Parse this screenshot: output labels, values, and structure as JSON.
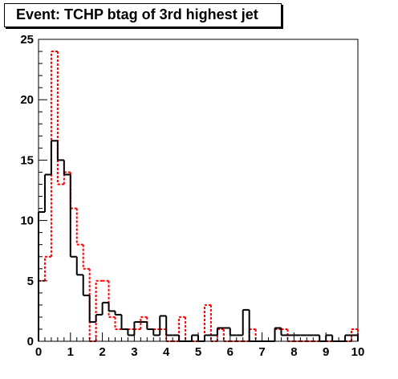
{
  "chart_data": {
    "type": "histogram",
    "title": "Event: TCHP btag of 3rd highest jet",
    "xlabel": "",
    "ylabel": "",
    "xlim": [
      0,
      10
    ],
    "ylim": [
      0,
      25
    ],
    "bin_width": 0.2,
    "grid": false,
    "x_ticks": [
      "0",
      "1",
      "2",
      "3",
      "4",
      "5",
      "6",
      "7",
      "8",
      "9",
      "10"
    ],
    "y_ticks": [
      "0",
      "5",
      "10",
      "15",
      "20",
      "25"
    ],
    "bin_edges": [
      0,
      0.2,
      0.4,
      0.6,
      0.8,
      1.0,
      1.2,
      1.4,
      1.6,
      1.8,
      2.0,
      2.2,
      2.4,
      2.6,
      2.8,
      3.0,
      3.2,
      3.4,
      3.6,
      3.8,
      4.0,
      4.2,
      4.4,
      4.6,
      4.8,
      5.0,
      5.2,
      5.4,
      5.6,
      5.8,
      6.0,
      6.2,
      6.4,
      6.6,
      6.8,
      7.0,
      7.2,
      7.4,
      7.6,
      7.8,
      8.0,
      8.2,
      8.4,
      8.6,
      8.8,
      9.0,
      9.2,
      9.4,
      9.6,
      9.8,
      10.0
    ],
    "series": [
      {
        "color": "#000000",
        "style": "solid",
        "values": [
          10.7,
          13.8,
          16.6,
          15.0,
          13.8,
          7.0,
          5.5,
          3.8,
          1.6,
          2.2,
          3.2,
          2.5,
          2.2,
          1.0,
          0.5,
          1.6,
          1.6,
          1.0,
          0.5,
          2.1,
          0.5,
          0.5,
          0.0,
          0.0,
          0.5,
          0.0,
          0.5,
          0.5,
          1.1,
          1.1,
          0.5,
          0.5,
          2.6,
          0.0,
          0.0,
          0.0,
          0.0,
          1.1,
          0.5,
          0.5,
          0.5,
          0.5,
          0.5,
          0.5,
          0.0,
          0.5,
          0.0,
          0.0,
          0.5,
          0.5
        ]
      },
      {
        "color": "#ff0000",
        "style": "dashed",
        "values": [
          5.0,
          7.0,
          24.0,
          13.0,
          14.0,
          11.0,
          8.0,
          6.0,
          0.0,
          5.0,
          5.0,
          2.0,
          1.0,
          1.0,
          1.0,
          1.0,
          2.0,
          1.0,
          1.0,
          1.0,
          0.0,
          0.0,
          2.0,
          0.0,
          0.0,
          0.0,
          3.0,
          0.0,
          1.0,
          0.0,
          0.0,
          0.0,
          0.0,
          1.0,
          0.0,
          0.0,
          0.0,
          1.0,
          1.0,
          0.0,
          0.0,
          0.0,
          0.0,
          0.0,
          0.0,
          0.0,
          0.0,
          0.0,
          0.0,
          1.0
        ]
      }
    ]
  }
}
